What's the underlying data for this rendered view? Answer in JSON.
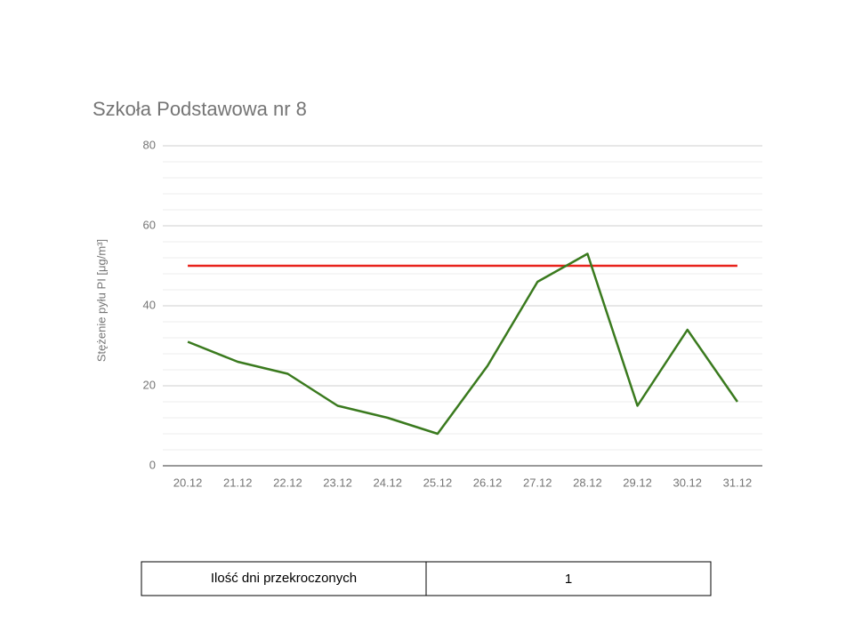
{
  "chart_data": {
    "type": "line",
    "title": "Szkoła Podstawowa nr 8",
    "y_label": "Stężenie pyłu PI [μg/m³]",
    "categories": [
      "20.12",
      "21.12",
      "22.12",
      "23.12",
      "24.12",
      "25.12",
      "26.12",
      "27.12",
      "28.12",
      "29.12",
      "30.12",
      "31.12"
    ],
    "values": [
      31,
      26,
      23,
      15,
      12,
      8,
      25,
      46,
      53,
      15,
      34,
      16
    ],
    "color": "#3a7a1e",
    "reference_line": {
      "value": 50,
      "color": "#e8221b"
    },
    "ylim": [
      0,
      80
    ],
    "yticks": [
      0,
      20,
      40,
      60,
      80
    ],
    "minor_yticks": [
      4,
      8,
      12,
      16,
      24,
      28,
      32,
      36,
      44,
      48,
      52,
      56,
      64,
      68,
      72,
      76
    ],
    "grid": true
  },
  "table": {
    "rows": [
      [
        "Ilość dni przekroczonych",
        "1"
      ]
    ]
  }
}
